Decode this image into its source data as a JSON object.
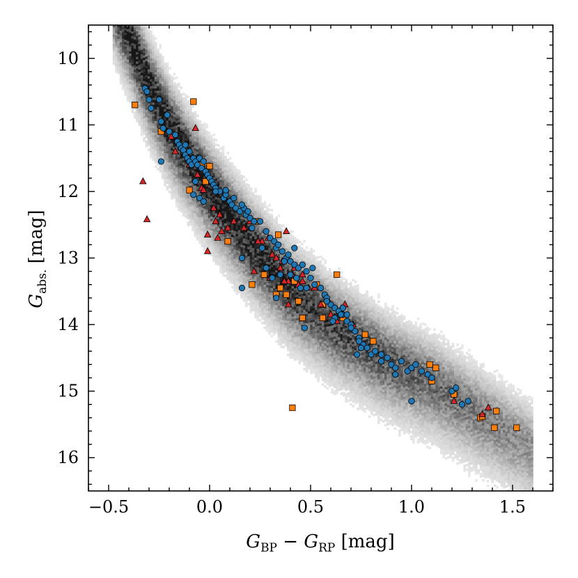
{
  "chart_data": {
    "type": "scatter",
    "title": "",
    "xlabel": {
      "main": "G",
      "sub1": "BP",
      "minus": " − ",
      "main2": "G",
      "sub2": "RP",
      "unit": " [mag]"
    },
    "ylabel": {
      "main": "G",
      "sub": "abs.",
      "unit": " [mag]"
    },
    "xlim": [
      -0.6,
      1.7
    ],
    "ylim": [
      16.5,
      9.5
    ],
    "y_inverted": true,
    "x_ticks": [
      -0.5,
      0.0,
      0.5,
      1.0,
      1.5
    ],
    "x_tick_labels": [
      "−0.5",
      "0.0",
      "0.5",
      "1.0",
      "1.5"
    ],
    "y_ticks": [
      10,
      11,
      12,
      13,
      14,
      15,
      16
    ],
    "y_tick_labels": [
      "10",
      "11",
      "12",
      "13",
      "14",
      "15",
      "16"
    ],
    "grid": false,
    "legend": "none",
    "background_density": {
      "kind": "2d histogram (grey)",
      "ridge": [
        [
          -0.42,
          9.5
        ],
        [
          -0.3,
          10.4
        ],
        [
          -0.2,
          11.0
        ],
        [
          -0.1,
          11.5
        ],
        [
          0.0,
          11.95
        ],
        [
          0.1,
          12.35
        ],
        [
          0.2,
          12.75
        ],
        [
          0.3,
          13.1
        ],
        [
          0.4,
          13.45
        ],
        [
          0.5,
          13.7
        ],
        [
          0.6,
          13.95
        ],
        [
          0.7,
          14.15
        ],
        [
          0.8,
          14.35
        ],
        [
          0.9,
          14.55
        ],
        [
          1.0,
          14.7
        ],
        [
          1.1,
          14.85
        ],
        [
          1.2,
          15.05
        ],
        [
          1.3,
          15.25
        ],
        [
          1.4,
          15.45
        ],
        [
          1.5,
          15.65
        ]
      ]
    },
    "series": [
      {
        "marker": "circle",
        "color": "#1f77b4",
        "points": [
          [
            -0.32,
            10.45
          ],
          [
            -0.31,
            10.5
          ],
          [
            -0.3,
            10.62
          ],
          [
            -0.29,
            10.75
          ],
          [
            -0.25,
            10.62
          ],
          [
            -0.24,
            10.95
          ],
          [
            -0.23,
            11.05
          ],
          [
            -0.21,
            10.85
          ],
          [
            -0.2,
            11.1
          ],
          [
            -0.17,
            11.15
          ],
          [
            -0.16,
            11.25
          ],
          [
            -0.15,
            11.3
          ],
          [
            -0.14,
            11.35
          ],
          [
            -0.13,
            11.38
          ],
          [
            -0.12,
            11.45
          ],
          [
            -0.11,
            11.5
          ],
          [
            -0.1,
            11.55
          ],
          [
            -0.09,
            11.6
          ],
          [
            -0.08,
            11.5
          ],
          [
            -0.07,
            11.55
          ],
          [
            -0.06,
            11.6
          ],
          [
            -0.05,
            11.5
          ],
          [
            -0.04,
            11.65
          ],
          [
            -0.03,
            11.55
          ],
          [
            -0.02,
            11.7
          ],
          [
            -0.01,
            11.75
          ],
          [
            0.0,
            11.8
          ],
          [
            0.01,
            11.85
          ],
          [
            0.02,
            11.9
          ],
          [
            0.03,
            11.95
          ],
          [
            0.05,
            12.0
          ],
          [
            0.07,
            12.1
          ],
          [
            0.08,
            12.05
          ],
          [
            0.1,
            12.15
          ],
          [
            0.11,
            12.2
          ],
          [
            0.13,
            12.25
          ],
          [
            0.15,
            12.3
          ],
          [
            0.17,
            12.25
          ],
          [
            0.18,
            12.35
          ],
          [
            0.2,
            12.4
          ],
          [
            0.22,
            12.45
          ],
          [
            -0.24,
            11.55
          ],
          [
            -0.07,
            11.85
          ],
          [
            -0.05,
            12.1
          ],
          [
            -0.03,
            12.15
          ],
          [
            -0.08,
            12.05
          ],
          [
            0.08,
            11.98
          ],
          [
            0.12,
            12.1
          ],
          [
            0.16,
            12.2
          ],
          [
            0.19,
            12.3
          ],
          [
            0.25,
            12.45
          ],
          [
            0.28,
            12.6
          ],
          [
            0.3,
            12.7
          ],
          [
            0.32,
            12.75
          ],
          [
            0.33,
            12.85
          ],
          [
            0.34,
            12.8
          ],
          [
            0.36,
            12.9
          ],
          [
            0.38,
            13.0
          ],
          [
            0.4,
            13.05
          ],
          [
            0.42,
            13.1
          ],
          [
            0.44,
            13.15
          ],
          [
            0.46,
            13.1
          ],
          [
            0.48,
            13.2
          ],
          [
            0.5,
            13.3
          ],
          [
            0.52,
            13.4
          ],
          [
            0.55,
            13.45
          ],
          [
            0.57,
            13.55
          ],
          [
            0.58,
            13.6
          ],
          [
            0.6,
            13.7
          ],
          [
            0.62,
            13.75
          ],
          [
            0.64,
            13.8
          ],
          [
            0.66,
            13.85
          ],
          [
            0.68,
            13.95
          ],
          [
            0.7,
            14.0
          ],
          [
            0.72,
            14.1
          ],
          [
            0.74,
            14.2
          ],
          [
            0.76,
            14.3
          ],
          [
            0.78,
            14.35
          ],
          [
            0.8,
            14.45
          ],
          [
            0.82,
            14.4
          ],
          [
            0.85,
            14.45
          ],
          [
            0.88,
            14.5
          ],
          [
            0.9,
            14.6
          ],
          [
            0.92,
            14.65
          ],
          [
            0.95,
            14.55
          ],
          [
            0.98,
            14.7
          ],
          [
            1.0,
            14.65
          ],
          [
            1.02,
            14.6
          ],
          [
            1.05,
            14.7
          ],
          [
            1.08,
            14.75
          ],
          [
            1.1,
            14.8
          ],
          [
            1.2,
            15.0
          ],
          [
            1.22,
            14.95
          ],
          [
            1.25,
            15.2
          ],
          [
            1.28,
            15.15
          ],
          [
            1.0,
            15.15
          ],
          [
            0.16,
            13.0
          ],
          [
            0.16,
            13.45
          ],
          [
            0.31,
            13.3
          ],
          [
            0.33,
            13.6
          ],
          [
            0.28,
            13.15
          ],
          [
            0.4,
            13.25
          ],
          [
            0.45,
            13.45
          ],
          [
            0.47,
            14.05
          ],
          [
            0.48,
            13.45
          ],
          [
            0.58,
            13.65
          ],
          [
            0.62,
            13.9
          ],
          [
            0.65,
            13.85
          ],
          [
            0.66,
            13.75
          ],
          [
            0.7,
            14.05
          ],
          [
            0.73,
            14.45
          ],
          [
            0.75,
            14.35
          ],
          [
            0.85,
            14.55
          ],
          [
            0.92,
            14.75
          ],
          [
            0.42,
            12.85
          ],
          [
            0.35,
            13.25
          ],
          [
            0.37,
            13.05
          ],
          [
            0.43,
            13.3
          ],
          [
            0.51,
            13.15
          ],
          [
            0.39,
            12.95
          ],
          [
            0.61,
            13.95
          ],
          [
            0.68,
            13.85
          ],
          [
            0.74,
            14.25
          ],
          [
            -0.12,
            11.3
          ],
          [
            -0.1,
            11.4
          ],
          [
            0.03,
            12.0
          ],
          [
            0.21,
            12.55
          ],
          [
            0.26,
            12.85
          ]
        ]
      },
      {
        "marker": "square",
        "color": "#ff7f0e",
        "points": [
          [
            -0.37,
            10.7
          ],
          [
            -0.08,
            10.65
          ],
          [
            -0.24,
            11.1
          ],
          [
            -0.1,
            11.98
          ],
          [
            -0.04,
            11.6
          ],
          [
            0.0,
            11.62
          ],
          [
            -0.02,
            11.85
          ],
          [
            0.09,
            12.75
          ],
          [
            0.23,
            12.45
          ],
          [
            0.34,
            12.65
          ],
          [
            0.21,
            13.4
          ],
          [
            0.33,
            13.55
          ],
          [
            0.27,
            13.25
          ],
          [
            0.35,
            13.45
          ],
          [
            0.38,
            13.55
          ],
          [
            0.44,
            13.65
          ],
          [
            0.46,
            13.9
          ],
          [
            0.53,
            13.4
          ],
          [
            0.56,
            13.7
          ],
          [
            0.56,
            13.9
          ],
          [
            0.63,
            13.25
          ],
          [
            0.66,
            13.9
          ],
          [
            0.77,
            14.15
          ],
          [
            0.81,
            14.25
          ],
          [
            0.41,
            15.25
          ],
          [
            1.09,
            14.6
          ],
          [
            1.1,
            14.85
          ],
          [
            1.12,
            14.65
          ],
          [
            1.21,
            15.05
          ],
          [
            1.34,
            15.4
          ],
          [
            1.35,
            15.38
          ],
          [
            1.41,
            15.55
          ],
          [
            1.42,
            15.3
          ],
          [
            1.52,
            15.55
          ],
          [
            0.65,
            13.85
          ],
          [
            0.42,
            13.35
          ]
        ]
      },
      {
        "marker": "triangle",
        "color": "#d62728",
        "points": [
          [
            -0.33,
            11.85
          ],
          [
            -0.31,
            12.42
          ],
          [
            -0.07,
            11.05
          ],
          [
            -0.19,
            11.18
          ],
          [
            -0.17,
            11.4
          ],
          [
            -0.1,
            11.6
          ],
          [
            -0.09,
            11.55
          ],
          [
            -0.06,
            11.75
          ],
          [
            -0.04,
            11.95
          ],
          [
            -0.03,
            11.98
          ],
          [
            0.02,
            12.25
          ],
          [
            0.03,
            12.45
          ],
          [
            0.05,
            12.35
          ],
          [
            0.09,
            12.55
          ],
          [
            0.12,
            12.45
          ],
          [
            0.17,
            12.55
          ],
          [
            0.2,
            12.45
          ],
          [
            0.06,
            12.6
          ],
          [
            0.04,
            12.7
          ],
          [
            -0.01,
            12.9
          ],
          [
            -0.01,
            12.65
          ],
          [
            0.26,
            12.75
          ],
          [
            0.29,
            12.7
          ],
          [
            0.31,
            12.95
          ],
          [
            0.33,
            13.0
          ],
          [
            0.36,
            13.05
          ],
          [
            0.38,
            12.6
          ],
          [
            0.39,
            13.35
          ],
          [
            0.41,
            13.25
          ],
          [
            0.42,
            13.15
          ],
          [
            0.44,
            13.4
          ],
          [
            0.46,
            13.25
          ],
          [
            0.49,
            13.45
          ],
          [
            0.52,
            13.45
          ],
          [
            0.55,
            13.7
          ],
          [
            0.6,
            13.85
          ],
          [
            0.63,
            13.95
          ],
          [
            0.67,
            13.7
          ],
          [
            0.71,
            14.0
          ],
          [
            0.35,
            13.15
          ],
          [
            0.37,
            13.35
          ],
          [
            0.39,
            13.7
          ],
          [
            0.46,
            13.35
          ],
          [
            0.59,
            13.65
          ],
          [
            0.22,
            13.2
          ],
          [
            0.3,
            13.3
          ],
          [
            0.24,
            12.75
          ],
          [
            1.21,
            15.15
          ],
          [
            1.35,
            15.35
          ],
          [
            1.38,
            15.25
          ]
        ]
      }
    ]
  }
}
